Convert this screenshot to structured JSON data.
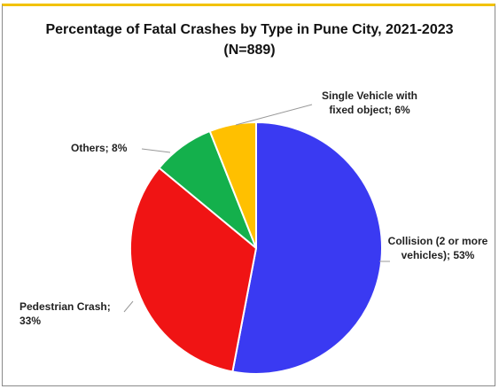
{
  "chart_data": {
    "type": "pie",
    "title": "Percentage of Fatal Crashes by Type in Pune City, 2021-2023 (N=889)",
    "categories": [
      "Collision (2 or more vehicles);",
      "Pedestrian Crash;",
      "Others;",
      "Single Vehicle with fixed object;"
    ],
    "values": [
      53,
      33,
      8,
      6
    ],
    "value_labels": [
      "53%",
      "33%",
      "8%",
      "6%"
    ],
    "colors": [
      "#3a3af2",
      "#f01414",
      "#14b04c",
      "#ffc000"
    ]
  }
}
